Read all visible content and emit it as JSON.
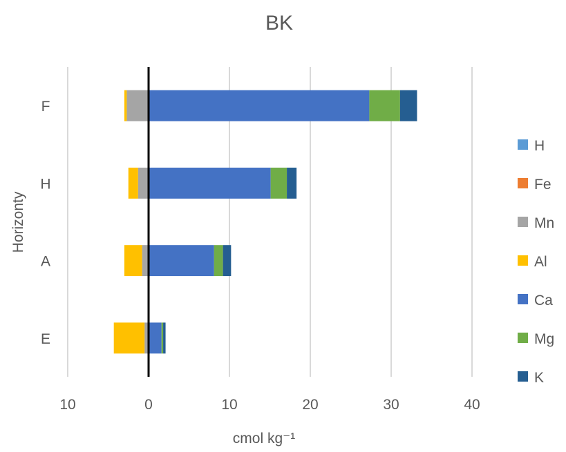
{
  "chart_data": {
    "type": "bar",
    "orientation": "horizontal",
    "stacked": true,
    "title": "BK",
    "xlabel": "cmol kg⁻¹",
    "ylabel": "Horizonty",
    "categories": [
      "F",
      "H",
      "A",
      "E"
    ],
    "xlim": [
      -10,
      40
    ],
    "x_ticks": [
      -10,
      0,
      10,
      20,
      30,
      40
    ],
    "x_tick_labels": [
      "10",
      "0",
      "10",
      "20",
      "30",
      "40"
    ],
    "grid": true,
    "legend_position": "right",
    "series": [
      {
        "name": "H",
        "color": "#5B9BD5",
        "values": [
          0,
          0,
          0,
          0
        ]
      },
      {
        "name": "Fe",
        "color": "#ED7D31",
        "values": [
          0,
          0,
          0,
          0
        ]
      },
      {
        "name": "Mn",
        "color": "#A5A5A5",
        "values": [
          -2.7,
          -1.3,
          -0.8,
          -0.5
        ]
      },
      {
        "name": "Al",
        "color": "#FFC000",
        "values": [
          -0.3,
          -1.2,
          -2.2,
          -3.8
        ]
      },
      {
        "name": "Ca",
        "color": "#4472C4",
        "values": [
          27.3,
          15.1,
          8.1,
          1.6
        ]
      },
      {
        "name": "Mg",
        "color": "#70AD47",
        "values": [
          3.8,
          2.0,
          1.1,
          0.2
        ]
      },
      {
        "name": "K",
        "color": "#255E91",
        "values": [
          2.1,
          1.2,
          1.0,
          0.3
        ]
      }
    ]
  }
}
